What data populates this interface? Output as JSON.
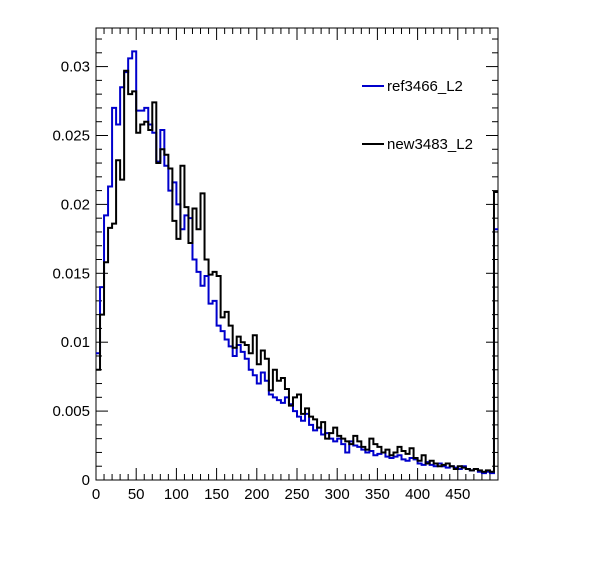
{
  "chart_data": {
    "type": "line",
    "title": "",
    "xlabel": "",
    "ylabel": "",
    "xlim": [
      0,
      500
    ],
    "ylim": [
      0,
      0.0328
    ],
    "x_ticks": [
      0,
      50,
      100,
      150,
      200,
      250,
      300,
      350,
      400,
      450
    ],
    "x_tick_labels": [
      "0",
      "50",
      "100",
      "150",
      "200",
      "250",
      "300",
      "350",
      "400",
      "450"
    ],
    "y_ticks": [
      0,
      0.005,
      0.01,
      0.015,
      0.02,
      0.025,
      0.03
    ],
    "y_tick_labels": [
      "0",
      "0.005",
      "0.01",
      "0.015",
      "0.02",
      "0.025",
      "0.03"
    ],
    "bin_width": 5,
    "legend_position": "top-right",
    "grid": false,
    "series": [
      {
        "name": "ref3466_L2",
        "color": "#0000cc",
        "values": [
          0.0092,
          0.014,
          0.0192,
          0.0213,
          0.027,
          0.0258,
          0.0285,
          0.0296,
          0.0306,
          0.0311,
          0.0268,
          0.0268,
          0.027,
          0.0258,
          0.0252,
          0.0231,
          0.0254,
          0.0228,
          0.021,
          0.0216,
          0.02,
          0.0182,
          0.0192,
          0.019,
          0.016,
          0.0151,
          0.0141,
          0.0148,
          0.0128,
          0.013,
          0.0112,
          0.0108,
          0.0102,
          0.0097,
          0.009,
          0.0098,
          0.0093,
          0.0088,
          0.008,
          0.0076,
          0.007,
          0.0078,
          0.0072,
          0.0062,
          0.006,
          0.0058,
          0.0056,
          0.006,
          0.0055,
          0.005,
          0.0046,
          0.0043,
          0.0048,
          0.004,
          0.0036,
          0.0038,
          0.0033,
          0.0034,
          0.003,
          0.0028,
          0.003,
          0.0026,
          0.002,
          0.0028,
          0.0025,
          0.0024,
          0.0022,
          0.002,
          0.0021,
          0.0018,
          0.0019,
          0.002,
          0.0017,
          0.0016,
          0.0017,
          0.0018,
          0.0015,
          0.0014,
          0.0016,
          0.0015,
          0.0012,
          0.0011,
          0.0013,
          0.0011,
          0.001,
          0.0012,
          0.001,
          0.0009,
          0.001,
          0.0009,
          0.0008,
          0.001,
          0.0008,
          0.0007,
          0.0008,
          0.0006,
          0.0005,
          0.0006,
          0.0005,
          0.0182
        ]
      },
      {
        "name": "new3483_L2",
        "color": "#000000",
        "values": [
          0.008,
          0.012,
          0.0158,
          0.0183,
          0.0186,
          0.0232,
          0.0218,
          0.0297,
          0.028,
          0.0282,
          0.0252,
          0.0258,
          0.026,
          0.0254,
          0.0274,
          0.023,
          0.024,
          0.0236,
          0.0226,
          0.0188,
          0.0175,
          0.0228,
          0.0198,
          0.0172,
          0.0197,
          0.0182,
          0.0208,
          0.016,
          0.0149,
          0.0151,
          0.0148,
          0.0118,
          0.0122,
          0.0112,
          0.0096,
          0.0104,
          0.01,
          0.0098,
          0.0092,
          0.0105,
          0.0084,
          0.0094,
          0.0088,
          0.0065,
          0.008,
          0.0072,
          0.0074,
          0.0066,
          0.0054,
          0.006,
          0.0062,
          0.0048,
          0.0052,
          0.0046,
          0.0044,
          0.0038,
          0.0042,
          0.003,
          0.0034,
          0.0038,
          0.0032,
          0.003,
          0.0028,
          0.0026,
          0.0032,
          0.0028,
          0.0024,
          0.0022,
          0.003,
          0.0026,
          0.0024,
          0.002,
          0.0022,
          0.0018,
          0.002,
          0.0024,
          0.0021,
          0.0019,
          0.0023,
          0.0016,
          0.0014,
          0.0018,
          0.0012,
          0.0014,
          0.0012,
          0.001,
          0.0011,
          0.0012,
          0.001,
          0.0008,
          0.001,
          0.0009,
          0.0008,
          0.0007,
          0.0008,
          0.0007,
          0.0006,
          0.0007,
          0.0006,
          0.0209
        ]
      }
    ]
  }
}
